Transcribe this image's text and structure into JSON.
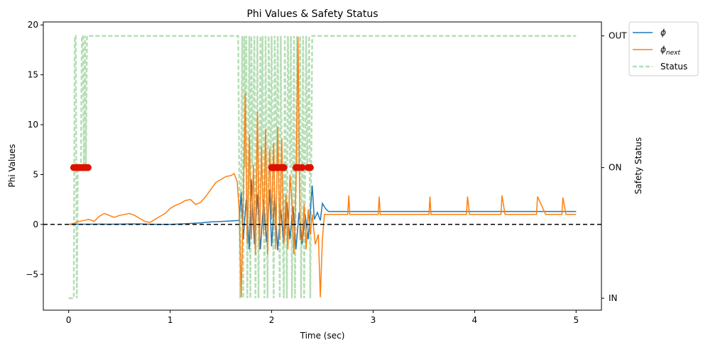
{
  "chart_data": {
    "type": "line",
    "title": "Phi Values & Safety Status",
    "xlabel": "Time (sec)",
    "ylabel": "Phi Values",
    "y2label": "Safety Status",
    "xlim": [
      -0.25,
      5.25
    ],
    "ylim": [
      -8.6,
      20.3
    ],
    "xticks": [
      0,
      1,
      2,
      3,
      4,
      5
    ],
    "xtick_labels": [
      "0",
      "1",
      "2",
      "3",
      "4",
      "5"
    ],
    "yticks": [
      -5,
      0,
      5,
      10,
      15,
      20
    ],
    "ytick_labels": [
      "−5",
      "0",
      "5",
      "10",
      "15",
      "20"
    ],
    "y2ticks": [
      "IN",
      "ON",
      "OUT"
    ],
    "y2_levels": [
      -7.4,
      5.7,
      18.9
    ],
    "grid": false,
    "legend_position": "outside top-right",
    "reference_line": {
      "y": 0,
      "style": "dashed",
      "color": "#000000"
    },
    "colors": {
      "phi": "#1f77b4",
      "phi_next": "#ff7f0e",
      "status": "#2ca02c",
      "markers": "#dd1100"
    },
    "legend": [
      {
        "key": "phi",
        "label_main": "ϕ",
        "label_sub": ""
      },
      {
        "key": "phi_next",
        "label_main": "ϕ",
        "label_sub": "next"
      },
      {
        "key": "status",
        "label_main": "Status",
        "label_sub": ""
      }
    ],
    "series": [
      {
        "name": "phi",
        "x": [
          0,
          0.1,
          0.2,
          0.3,
          0.4,
          0.5,
          0.6,
          0.7,
          0.8,
          0.9,
          1.0,
          1.1,
          1.2,
          1.3,
          1.4,
          1.5,
          1.6,
          1.68,
          1.7,
          1.72,
          1.75,
          1.78,
          1.8,
          1.83,
          1.86,
          1.89,
          1.92,
          1.95,
          1.98,
          2.0,
          2.03,
          2.06,
          2.09,
          2.12,
          2.15,
          2.18,
          2.21,
          2.24,
          2.27,
          2.3,
          2.33,
          2.36,
          2.4,
          2.42,
          2.45,
          2.48,
          2.5,
          2.53,
          2.56,
          2.6,
          3.0,
          3.5,
          4.0,
          4.5,
          5.0
        ],
        "values": [
          0,
          0.02,
          0.02,
          0.03,
          0.02,
          0.03,
          0.05,
          0.04,
          0.02,
          0.0,
          0.0,
          0.05,
          0.1,
          0.15,
          0.25,
          0.3,
          0.35,
          0.4,
          3.2,
          -1.5,
          2.5,
          -2.5,
          4.5,
          -2.0,
          3.0,
          -2.5,
          2.5,
          -1.8,
          3.5,
          -2.2,
          2.8,
          -2.6,
          1.5,
          -2.0,
          2.2,
          -1.5,
          1.8,
          -2.5,
          1.2,
          -2.0,
          1.0,
          -1.5,
          3.9,
          0.5,
          1.2,
          0.4,
          2.1,
          1.6,
          1.3,
          1.3,
          1.3,
          1.3,
          1.3,
          1.3,
          1.3
        ]
      },
      {
        "name": "phi_next",
        "x": [
          0,
          0.05,
          0.1,
          0.15,
          0.2,
          0.25,
          0.3,
          0.35,
          0.4,
          0.45,
          0.5,
          0.55,
          0.6,
          0.65,
          0.7,
          0.75,
          0.8,
          0.85,
          0.9,
          0.95,
          1.0,
          1.05,
          1.1,
          1.15,
          1.2,
          1.25,
          1.3,
          1.35,
          1.4,
          1.45,
          1.5,
          1.55,
          1.6,
          1.63,
          1.66,
          1.68,
          1.7,
          1.72,
          1.74,
          1.76,
          1.78,
          1.8,
          1.82,
          1.84,
          1.86,
          1.88,
          1.9,
          1.92,
          1.94,
          1.96,
          1.98,
          2.0,
          2.02,
          2.04,
          2.06,
          2.08,
          2.1,
          2.12,
          2.14,
          2.16,
          2.18,
          2.2,
          2.22,
          2.24,
          2.26,
          2.28,
          2.3,
          2.32,
          2.34,
          2.36,
          2.38,
          2.4,
          2.43,
          2.46,
          2.48,
          2.5,
          2.52,
          2.55,
          2.6,
          2.7,
          2.75,
          2.76,
          2.77,
          2.8,
          3.0,
          3.05,
          3.06,
          3.07,
          3.1,
          3.5,
          3.55,
          3.56,
          3.57,
          3.6,
          3.9,
          3.92,
          3.93,
          3.95,
          4.0,
          4.25,
          4.26,
          4.27,
          4.3,
          4.5,
          4.6,
          4.61,
          4.62,
          4.7,
          4.85,
          4.86,
          4.87,
          4.9,
          5.0
        ],
        "values": [
          0,
          0.1,
          0.3,
          0.4,
          0.5,
          0.3,
          0.8,
          1.1,
          0.9,
          0.7,
          0.9,
          1.0,
          1.1,
          0.9,
          0.6,
          0.3,
          0.2,
          0.5,
          0.8,
          1.1,
          1.6,
          1.9,
          2.1,
          2.4,
          2.5,
          2.0,
          2.2,
          2.8,
          3.5,
          4.2,
          4.5,
          4.8,
          4.9,
          5.1,
          4.3,
          1.5,
          -7.3,
          2.0,
          13.2,
          -2.0,
          9.0,
          -1.5,
          6.0,
          -3.0,
          11.3,
          -2.5,
          7.8,
          -1.0,
          9.6,
          -3.0,
          7.6,
          0.5,
          8.2,
          -2.5,
          9.8,
          -1.5,
          8.6,
          -2.0,
          3.0,
          -2.5,
          5.0,
          2.2,
          -3.0,
          4.0,
          18.8,
          -1.5,
          -1.6,
          2.0,
          -2.5,
          1.5,
          -1.0,
          1.0,
          -2.0,
          -1.0,
          -7.3,
          -1.5,
          1.0,
          1.0,
          1.0,
          1.0,
          1.0,
          2.9,
          1.0,
          1.0,
          1.0,
          1.0,
          2.8,
          1.0,
          1.0,
          1.0,
          1.0,
          2.8,
          1.0,
          1.0,
          1.0,
          1.0,
          2.8,
          1.0,
          1.0,
          1.0,
          1.0,
          2.9,
          1.0,
          1.0,
          1.0,
          1.0,
          2.8,
          1.0,
          1.0,
          1.0,
          2.7,
          1.0,
          1.0
        ]
      },
      {
        "name": "status",
        "x": [
          0,
          0.05,
          0.06,
          0.07,
          0.08,
          0.09,
          0.1,
          0.12,
          0.13,
          0.14,
          0.15,
          0.16,
          0.17,
          0.18,
          0.19,
          0.2,
          1.67,
          1.68,
          1.69,
          1.71,
          1.72,
          1.73,
          1.74,
          1.75,
          1.76,
          1.78,
          1.79,
          1.8,
          1.81,
          1.83,
          1.84,
          1.86,
          1.87,
          1.89,
          1.9,
          1.91,
          1.93,
          1.94,
          1.96,
          1.97,
          1.99,
          2.0,
          2.02,
          2.03,
          2.05,
          2.06,
          2.08,
          2.09,
          2.1,
          2.12,
          2.13,
          2.15,
          2.16,
          2.18,
          2.19,
          2.2,
          2.22,
          2.23,
          2.25,
          2.26,
          2.28,
          2.29,
          2.31,
          2.32,
          2.34,
          2.35,
          2.37,
          2.38,
          2.4,
          2.42,
          5.0
        ],
        "values": [
          "IN",
          "IN",
          "OUT",
          "OUT",
          "IN",
          "ON",
          "ON",
          "ON",
          "OUT",
          "OUT",
          "ON",
          "OUT",
          "ON",
          "OUT",
          "OUT",
          "OUT",
          "OUT",
          "ON",
          "IN",
          "OUT",
          "IN",
          "OUT",
          "ON",
          "OUT",
          "IN",
          "OUT",
          "IN",
          "OUT",
          "ON",
          "OUT",
          "IN",
          "OUT",
          "IN",
          "OUT",
          "ON",
          "OUT",
          "IN",
          "OUT",
          "IN",
          "OUT",
          "ON",
          "OUT",
          "IN",
          "OUT",
          "ON",
          "OUT",
          "IN",
          "OUT",
          "ON",
          "IN",
          "OUT",
          "IN",
          "OUT",
          "ON",
          "OUT",
          "IN",
          "OUT",
          "IN",
          "OUT",
          "ON",
          "OUT",
          "IN",
          "OUT",
          "IN",
          "OUT",
          "ON",
          "OUT",
          "IN",
          "OUT",
          "OUT",
          "OUT"
        ]
      },
      {
        "name": "on-boundary markers",
        "x": [
          0.05,
          0.07,
          0.09,
          0.11,
          0.13,
          0.15,
          0.17,
          0.19,
          2.0,
          2.02,
          2.04,
          2.06,
          2.08,
          2.1,
          2.12,
          2.24,
          2.26,
          2.3,
          2.36,
          2.38
        ],
        "values": [
          5.7,
          5.7,
          5.7,
          5.7,
          5.7,
          5.7,
          5.7,
          5.7,
          5.7,
          5.7,
          5.7,
          5.7,
          5.7,
          5.7,
          5.7,
          5.7,
          5.7,
          5.7,
          5.7,
          5.7
        ]
      }
    ]
  }
}
